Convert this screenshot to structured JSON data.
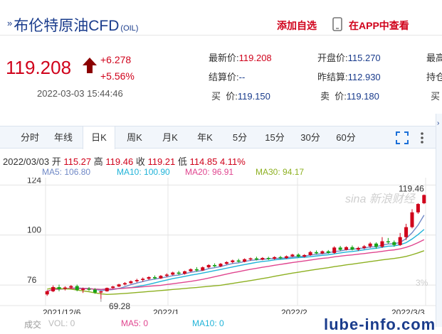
{
  "header": {
    "title": "布伦特原油CFD",
    "code": "(OIL)",
    "add_watch": "添加自选",
    "app_view": "在APP中查看"
  },
  "quote": {
    "price": "119.208",
    "change": "+6.278",
    "change_pct": "+5.56%",
    "timestamp": "2022-03-03 15:44:46"
  },
  "stats": {
    "latest_label": "最新价:",
    "latest": "119.208",
    "open_label": "开盘价:",
    "open": "115.270",
    "high_label": "最高",
    "settle_label": "结算价:",
    "settle": "--",
    "prev_label": "昨结算:",
    "prev": "112.930",
    "hold_label": "持仓",
    "buy_label": "买  价:",
    "buy": "119.150",
    "sell_label": "卖  价:",
    "sell": "119.180",
    "buy_vol_label": "买"
  },
  "tabs": [
    "分时",
    "年线",
    "日K",
    "周K",
    "月K",
    "年K",
    "5分",
    "15分",
    "30分",
    "60分"
  ],
  "active_tab": "日K",
  "ohlc": {
    "date": "2022/03/03",
    "open_label": "开",
    "open": "115.27",
    "high_label": "高",
    "high": "119.46",
    "close_label": "收",
    "close": "119.21",
    "low_label": "低",
    "low": "114.85",
    "pct": "4.11%"
  },
  "ma": {
    "ma5": "MA5: 106.80",
    "ma10": "MA10: 100.90",
    "ma20": "MA20: 96.91",
    "ma30": "MA30: 94.17"
  },
  "colors": {
    "up": "#d0021b",
    "down": "#17a317",
    "ma5": "#6f88c6",
    "ma10": "#1fb3d8",
    "ma20": "#e0458f",
    "ma30": "#8db021"
  },
  "footer": {
    "volume_label": "成交",
    "vol": "VOL: 0",
    "ma5": "MA5: 0",
    "ma10": "MA10: 0"
  },
  "chart_data": {
    "type": "candlestick",
    "y_ticks": [
      124,
      100,
      76
    ],
    "ylim": [
      67.5,
      125.5
    ],
    "x_ticks": [
      "2021/12/6",
      "2022/1",
      "2022/2",
      "2022/3/3"
    ],
    "max_label": "119.46",
    "min_label": "69.28",
    "pct_right": "3%",
    "candles": [
      {
        "o": 71.5,
        "h": 73.5,
        "l": 70.8,
        "c": 73.0
      },
      {
        "o": 73.0,
        "h": 75.8,
        "l": 72.6,
        "c": 75.0
      },
      {
        "o": 75.0,
        "h": 76.2,
        "l": 73.0,
        "c": 74.0
      },
      {
        "o": 74.2,
        "h": 75.4,
        "l": 73.4,
        "c": 74.8
      },
      {
        "o": 74.8,
        "h": 76.0,
        "l": 74.0,
        "c": 75.5
      },
      {
        "o": 75.5,
        "h": 76.2,
        "l": 73.0,
        "c": 73.6
      },
      {
        "o": 73.6,
        "h": 74.8,
        "l": 72.2,
        "c": 74.2
      },
      {
        "o": 74.2,
        "h": 75.0,
        "l": 73.2,
        "c": 73.8
      },
      {
        "o": 73.8,
        "h": 74.5,
        "l": 71.8,
        "c": 72.4
      },
      {
        "o": 72.4,
        "h": 73.2,
        "l": 69.3,
        "c": 73.0
      },
      {
        "o": 73.0,
        "h": 74.8,
        "l": 72.8,
        "c": 74.6
      },
      {
        "o": 74.6,
        "h": 75.6,
        "l": 74.2,
        "c": 75.3
      },
      {
        "o": 75.3,
        "h": 76.6,
        "l": 75.0,
        "c": 76.3
      },
      {
        "o": 76.3,
        "h": 77.4,
        "l": 75.8,
        "c": 76.9
      },
      {
        "o": 76.9,
        "h": 78.2,
        "l": 76.5,
        "c": 77.8
      },
      {
        "o": 77.8,
        "h": 79.0,
        "l": 77.2,
        "c": 78.4
      },
      {
        "o": 78.4,
        "h": 79.6,
        "l": 77.6,
        "c": 79.0
      },
      {
        "o": 79.0,
        "h": 80.2,
        "l": 78.4,
        "c": 79.8
      },
      {
        "o": 79.8,
        "h": 80.6,
        "l": 78.8,
        "c": 79.2
      },
      {
        "o": 79.2,
        "h": 80.8,
        "l": 78.9,
        "c": 80.4
      },
      {
        "o": 80.4,
        "h": 81.6,
        "l": 79.8,
        "c": 81.0
      },
      {
        "o": 81.0,
        "h": 82.4,
        "l": 80.6,
        "c": 82.0
      },
      {
        "o": 82.0,
        "h": 82.8,
        "l": 80.8,
        "c": 81.4
      },
      {
        "o": 81.4,
        "h": 82.9,
        "l": 81.0,
        "c": 82.6
      },
      {
        "o": 82.6,
        "h": 84.0,
        "l": 82.2,
        "c": 83.6
      },
      {
        "o": 83.6,
        "h": 84.6,
        "l": 82.4,
        "c": 83.0
      },
      {
        "o": 83.0,
        "h": 84.9,
        "l": 82.8,
        "c": 84.5
      },
      {
        "o": 84.5,
        "h": 86.0,
        "l": 84.0,
        "c": 85.6
      },
      {
        "o": 85.6,
        "h": 86.4,
        "l": 84.6,
        "c": 85.0
      },
      {
        "o": 85.0,
        "h": 86.6,
        "l": 84.6,
        "c": 86.2
      },
      {
        "o": 86.2,
        "h": 87.4,
        "l": 85.8,
        "c": 87.0
      },
      {
        "o": 87.0,
        "h": 88.2,
        "l": 86.4,
        "c": 87.8
      },
      {
        "o": 87.8,
        "h": 88.6,
        "l": 86.8,
        "c": 87.2
      },
      {
        "o": 87.2,
        "h": 88.8,
        "l": 86.9,
        "c": 88.4
      },
      {
        "o": 88.4,
        "h": 89.2,
        "l": 87.6,
        "c": 88.8
      },
      {
        "o": 88.8,
        "h": 89.6,
        "l": 87.8,
        "c": 88.2
      },
      {
        "o": 88.2,
        "h": 89.4,
        "l": 87.9,
        "c": 89.0
      },
      {
        "o": 89.0,
        "h": 89.6,
        "l": 88.0,
        "c": 88.6
      },
      {
        "o": 88.6,
        "h": 89.8,
        "l": 88.2,
        "c": 89.4
      },
      {
        "o": 89.4,
        "h": 90.0,
        "l": 88.4,
        "c": 88.9
      },
      {
        "o": 88.9,
        "h": 90.2,
        "l": 88.6,
        "c": 89.8
      },
      {
        "o": 89.8,
        "h": 91.0,
        "l": 89.4,
        "c": 90.6
      },
      {
        "o": 90.6,
        "h": 91.2,
        "l": 89.2,
        "c": 89.6
      },
      {
        "o": 89.6,
        "h": 90.8,
        "l": 89.2,
        "c": 90.4
      },
      {
        "o": 90.4,
        "h": 92.4,
        "l": 90.0,
        "c": 91.8
      },
      {
        "o": 91.8,
        "h": 92.6,
        "l": 90.8,
        "c": 91.2
      },
      {
        "o": 91.2,
        "h": 92.6,
        "l": 90.8,
        "c": 92.2
      },
      {
        "o": 92.2,
        "h": 92.8,
        "l": 91.0,
        "c": 91.4
      },
      {
        "o": 91.4,
        "h": 94.6,
        "l": 91.0,
        "c": 94.0
      },
      {
        "o": 94.0,
        "h": 94.8,
        "l": 92.4,
        "c": 92.9
      },
      {
        "o": 92.9,
        "h": 94.6,
        "l": 92.6,
        "c": 94.2
      },
      {
        "o": 94.2,
        "h": 95.0,
        "l": 92.6,
        "c": 93.0
      },
      {
        "o": 93.0,
        "h": 94.4,
        "l": 92.4,
        "c": 93.8
      },
      {
        "o": 93.8,
        "h": 95.2,
        "l": 93.2,
        "c": 94.6
      },
      {
        "o": 94.6,
        "h": 96.6,
        "l": 93.8,
        "c": 95.9
      },
      {
        "o": 95.9,
        "h": 96.5,
        "l": 93.4,
        "c": 94.4
      },
      {
        "o": 94.4,
        "h": 99.0,
        "l": 93.8,
        "c": 97.0
      },
      {
        "o": 97.0,
        "h": 98.6,
        "l": 95.8,
        "c": 96.6
      },
      {
        "o": 96.6,
        "h": 97.4,
        "l": 94.4,
        "c": 95.2
      },
      {
        "o": 95.2,
        "h": 101.0,
        "l": 94.8,
        "c": 99.0
      },
      {
        "o": 99.0,
        "h": 105.4,
        "l": 97.6,
        "c": 103.8
      },
      {
        "o": 103.8,
        "h": 112.4,
        "l": 103.2,
        "c": 110.9
      },
      {
        "o": 110.9,
        "h": 115.3,
        "l": 110.2,
        "c": 114.9
      },
      {
        "o": 115.27,
        "h": 119.46,
        "l": 114.85,
        "c": 119.21
      }
    ]
  }
}
